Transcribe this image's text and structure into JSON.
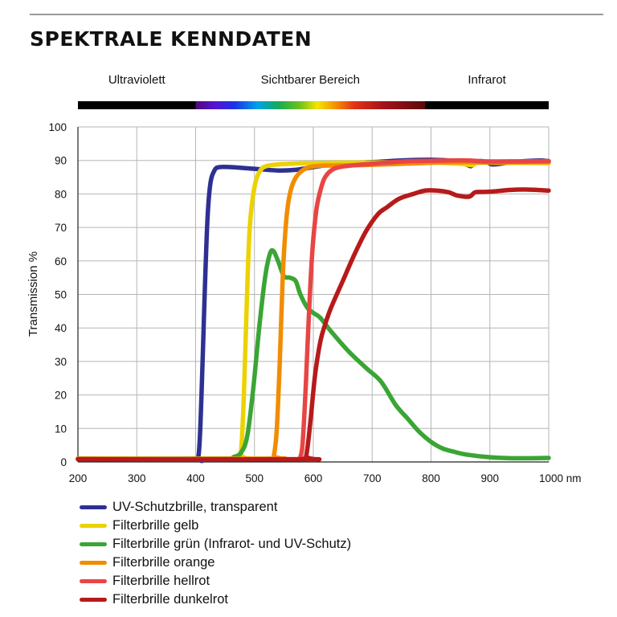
{
  "title": "SPEKTRALE KENNDATEN",
  "regions": [
    {
      "name": "Ultraviolett",
      "x_from": 200,
      "x_to": 400
    },
    {
      "name": "Sichtbarer Bereich",
      "x_from": 400,
      "x_to": 790
    },
    {
      "name": "Infrarot",
      "x_from": 790,
      "x_to": 1000
    }
  ],
  "chart_data": {
    "type": "line",
    "xlabel": "",
    "x_unit": "nm",
    "ylabel": "Transmission %",
    "xlim": [
      200,
      1000
    ],
    "ylim": [
      0,
      100
    ],
    "x_ticks": [
      "200",
      "300",
      "400",
      "500",
      "600",
      "700",
      "800",
      "900",
      "1000 nm"
    ],
    "y_ticks": [
      "0",
      "10",
      "20",
      "30",
      "40",
      "50",
      "60",
      "70",
      "80",
      "90",
      "100"
    ],
    "x_tick_values": [
      200,
      300,
      400,
      500,
      600,
      700,
      800,
      900,
      1000
    ],
    "y_tick_values": [
      0,
      10,
      20,
      30,
      40,
      50,
      60,
      70,
      80,
      90,
      100
    ],
    "grid": true,
    "legend_position": "bottom",
    "series": [
      {
        "name": "UV-Schutzbrille, transparent",
        "color": "#2e3192",
        "points": [
          [
            200,
            1
          ],
          [
            395,
            1
          ],
          [
            405,
            2
          ],
          [
            410,
            20
          ],
          [
            415,
            48
          ],
          [
            420,
            72
          ],
          [
            425,
            83
          ],
          [
            432,
            87
          ],
          [
            440,
            88
          ],
          [
            460,
            88
          ],
          [
            500,
            87.5
          ],
          [
            540,
            87
          ],
          [
            570,
            87.2
          ],
          [
            600,
            88
          ],
          [
            640,
            89
          ],
          [
            700,
            89.5
          ],
          [
            750,
            90
          ],
          [
            800,
            90.2
          ],
          [
            840,
            89.8
          ],
          [
            860,
            88.8
          ],
          [
            868,
            88.3
          ],
          [
            875,
            89.5
          ],
          [
            885,
            89.8
          ],
          [
            895,
            89.5
          ],
          [
            905,
            88.8
          ],
          [
            930,
            89.3
          ],
          [
            960,
            89.8
          ],
          [
            985,
            90
          ],
          [
            1000,
            89.8
          ]
        ]
      },
      {
        "name": "Filterbrille gelb",
        "color": "#ecd200",
        "points": [
          [
            200,
            1
          ],
          [
            470,
            1
          ],
          [
            477,
            3
          ],
          [
            482,
            20
          ],
          [
            487,
            48
          ],
          [
            492,
            70
          ],
          [
            500,
            82
          ],
          [
            510,
            87
          ],
          [
            525,
            88.5
          ],
          [
            560,
            89
          ],
          [
            600,
            89.2
          ],
          [
            700,
            89.4
          ],
          [
            800,
            89.4
          ],
          [
            850,
            89
          ],
          [
            870,
            88.6
          ],
          [
            880,
            89.3
          ],
          [
            920,
            89.3
          ],
          [
            1000,
            89.2
          ]
        ]
      },
      {
        "name": "Filterbrille grün (Infrarot- und UV-Schutz)",
        "color": "#3aa535",
        "points": [
          [
            200,
            1
          ],
          [
            440,
            1
          ],
          [
            465,
            1.5
          ],
          [
            478,
            3
          ],
          [
            488,
            8
          ],
          [
            498,
            22
          ],
          [
            508,
            40
          ],
          [
            518,
            55
          ],
          [
            526,
            62
          ],
          [
            532,
            63
          ],
          [
            540,
            60
          ],
          [
            550,
            55.5
          ],
          [
            560,
            55
          ],
          [
            570,
            54
          ],
          [
            578,
            50
          ],
          [
            590,
            46
          ],
          [
            600,
            44.5
          ],
          [
            612,
            43
          ],
          [
            630,
            39
          ],
          [
            660,
            33
          ],
          [
            690,
            28
          ],
          [
            715,
            24
          ],
          [
            740,
            17
          ],
          [
            760,
            13
          ],
          [
            780,
            9
          ],
          [
            800,
            6
          ],
          [
            820,
            4
          ],
          [
            840,
            3
          ],
          [
            860,
            2.2
          ],
          [
            900,
            1.4
          ],
          [
            940,
            1.1
          ],
          [
            1000,
            1.2
          ]
        ]
      },
      {
        "name": "Filterbrille orange",
        "color": "#f28c00",
        "points": [
          [
            200,
            1
          ],
          [
            527,
            1
          ],
          [
            533,
            2
          ],
          [
            538,
            10
          ],
          [
            543,
            30
          ],
          [
            548,
            55
          ],
          [
            553,
            70
          ],
          [
            558,
            78
          ],
          [
            565,
            83
          ],
          [
            575,
            86
          ],
          [
            590,
            87.8
          ],
          [
            610,
            88.4
          ],
          [
            650,
            88.5
          ],
          [
            700,
            88.7
          ],
          [
            750,
            89
          ],
          [
            800,
            89.3
          ],
          [
            860,
            89.5
          ],
          [
            900,
            89.4
          ],
          [
            1000,
            89.5
          ]
        ]
      },
      {
        "name": "Filterbrille hellrot",
        "color": "#e84545",
        "points": [
          [
            200,
            0.8
          ],
          [
            572,
            0.8
          ],
          [
            578,
            1.5
          ],
          [
            582,
            6
          ],
          [
            587,
            22
          ],
          [
            592,
            42
          ],
          [
            598,
            62
          ],
          [
            605,
            75
          ],
          [
            612,
            81
          ],
          [
            620,
            85
          ],
          [
            635,
            87.5
          ],
          [
            660,
            88.4
          ],
          [
            700,
            89
          ],
          [
            750,
            89.7
          ],
          [
            800,
            89.9
          ],
          [
            860,
            90
          ],
          [
            900,
            89.7
          ],
          [
            1000,
            89.8
          ]
        ]
      },
      {
        "name": "Filterbrille dunkelrot",
        "color": "#b71a1a",
        "points": [
          [
            200,
            0.8
          ],
          [
            580,
            0.8
          ],
          [
            588,
            2
          ],
          [
            595,
            12
          ],
          [
            603,
            26
          ],
          [
            612,
            36
          ],
          [
            620,
            41
          ],
          [
            630,
            46
          ],
          [
            650,
            54
          ],
          [
            670,
            62
          ],
          [
            690,
            69
          ],
          [
            710,
            74
          ],
          [
            725,
            76
          ],
          [
            745,
            78.5
          ],
          [
            770,
            80
          ],
          [
            790,
            81
          ],
          [
            810,
            81
          ],
          [
            830,
            80.5
          ],
          [
            845,
            79.5
          ],
          [
            865,
            79.2
          ],
          [
            875,
            80.5
          ],
          [
            890,
            80.6
          ],
          [
            910,
            80.8
          ],
          [
            935,
            81.2
          ],
          [
            965,
            81.3
          ],
          [
            1000,
            81
          ]
        ]
      }
    ]
  }
}
